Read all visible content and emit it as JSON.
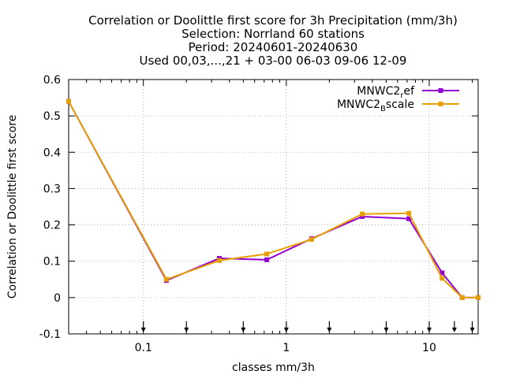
{
  "chart_data": {
    "type": "line",
    "title_lines": [
      "Correlation or Doolittle first score  for 3h Precipitation (mm/3h)",
      "Selection: Norrland     60 stations",
      "Period: 20240601-20240630",
      "Used 00,03,...,21 + 03-00 06-03 09-06 12-09"
    ],
    "xlabel": "classes mm/3h",
    "ylabel": "Correlation or Doolittle first score",
    "x_scale": "log",
    "xlim": [
      0.03,
      22
    ],
    "ylim": [
      -0.1,
      0.6
    ],
    "x_ticks": [
      {
        "value": 0.1,
        "label": "0.1"
      },
      {
        "value": 1,
        "label": "1"
      },
      {
        "value": 10,
        "label": "10"
      }
    ],
    "y_ticks": [
      {
        "value": -0.1,
        "label": "-0.1"
      },
      {
        "value": 0,
        "label": "0"
      },
      {
        "value": 0.1,
        "label": "0.1"
      },
      {
        "value": 0.2,
        "label": "0.2"
      },
      {
        "value": 0.3,
        "label": "0.3"
      },
      {
        "value": 0.4,
        "label": "0.4"
      },
      {
        "value": 0.5,
        "label": "0.5"
      },
      {
        "value": 0.6,
        "label": "0.6"
      }
    ],
    "grid": true,
    "legend_position": "top-right",
    "class_limit_arrows": [
      0.1,
      0.2,
      0.5,
      1,
      2,
      5,
      10,
      15,
      20
    ],
    "series": [
      {
        "name_base": "MNWC2",
        "name_sub": "r",
        "name_rest": "ef",
        "color": "#9400d3",
        "points": [
          {
            "x": 0.03,
            "y": 0.54
          },
          {
            "x": 0.145,
            "y": 0.047
          },
          {
            "x": 0.34,
            "y": 0.108
          },
          {
            "x": 0.73,
            "y": 0.104
          },
          {
            "x": 1.5,
            "y": 0.162
          },
          {
            "x": 3.4,
            "y": 0.223
          },
          {
            "x": 7.2,
            "y": 0.217
          },
          {
            "x": 12.3,
            "y": 0.068
          },
          {
            "x": 17,
            "y": 0
          },
          {
            "x": 22,
            "y": 0
          }
        ]
      },
      {
        "name_base": "MNWC2",
        "name_sub": "B",
        "name_rest": "scale",
        "color": "#e69f00",
        "points": [
          {
            "x": 0.03,
            "y": 0.54
          },
          {
            "x": 0.145,
            "y": 0.05
          },
          {
            "x": 0.34,
            "y": 0.102
          },
          {
            "x": 0.73,
            "y": 0.12
          },
          {
            "x": 1.5,
            "y": 0.16
          },
          {
            "x": 3.4,
            "y": 0.23
          },
          {
            "x": 7.2,
            "y": 0.232
          },
          {
            "x": 12.3,
            "y": 0.053
          },
          {
            "x": 17,
            "y": 0
          },
          {
            "x": 22,
            "y": 0
          }
        ]
      }
    ]
  }
}
